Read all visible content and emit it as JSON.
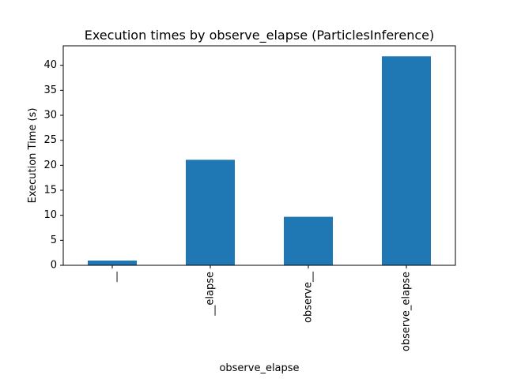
{
  "chart_data": {
    "type": "bar",
    "title": "Execution times by observe_elapse (ParticlesInference)",
    "xlabel": "observe_elapse",
    "ylabel": "Execution Time (s)",
    "categories": [
      "__",
      "__elapse",
      "observe__",
      "observe_elapse"
    ],
    "values": [
      0.95,
      21.1,
      9.7,
      41.8
    ],
    "ylim": [
      0,
      43.9
    ],
    "yticks": [
      0,
      5,
      10,
      15,
      20,
      25,
      30,
      35,
      40
    ],
    "grid": false,
    "legend": "none",
    "bar_color": "#1f77b4"
  }
}
